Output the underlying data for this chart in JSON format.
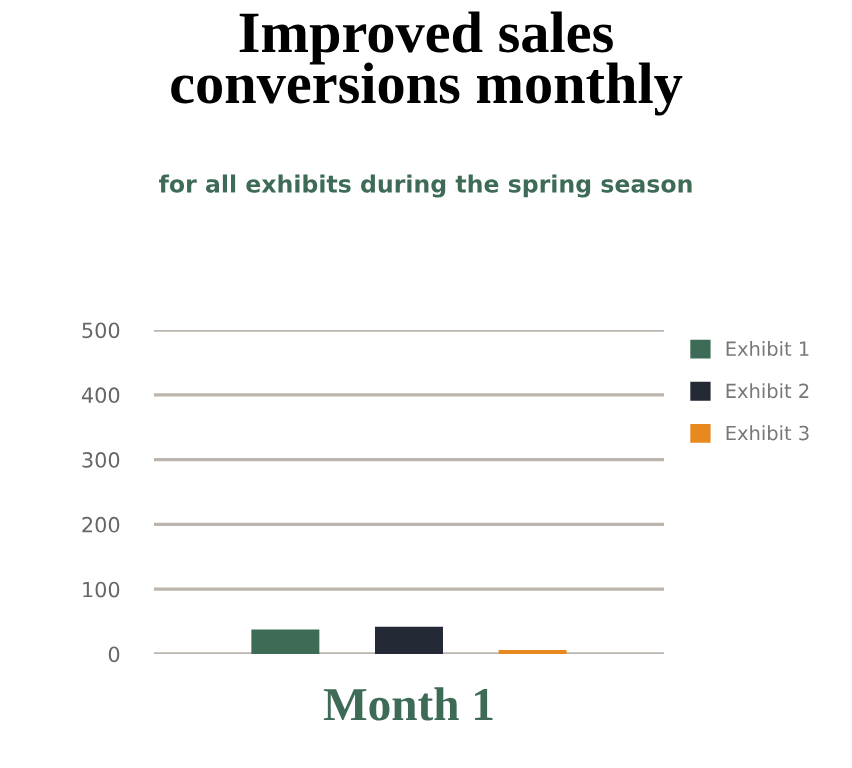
{
  "chart_data": {
    "type": "bar",
    "title": "Improved sales\nconversions monthly",
    "subtitle": "for all exhibits during the spring season",
    "categories": [
      "Month 1"
    ],
    "series": [
      {
        "name": "Exhibit 1",
        "color": "#3d6b56",
        "values": [
          38
        ]
      },
      {
        "name": "Exhibit 2",
        "color": "#232a35",
        "values": [
          42
        ]
      },
      {
        "name": "Exhibit 3",
        "color": "#e8891f",
        "values": [
          6
        ]
      }
    ],
    "ylim": [
      0,
      500
    ],
    "yticks": [
      0,
      100,
      200,
      300,
      400,
      500
    ],
    "grid": "y",
    "legend": "top right"
  }
}
